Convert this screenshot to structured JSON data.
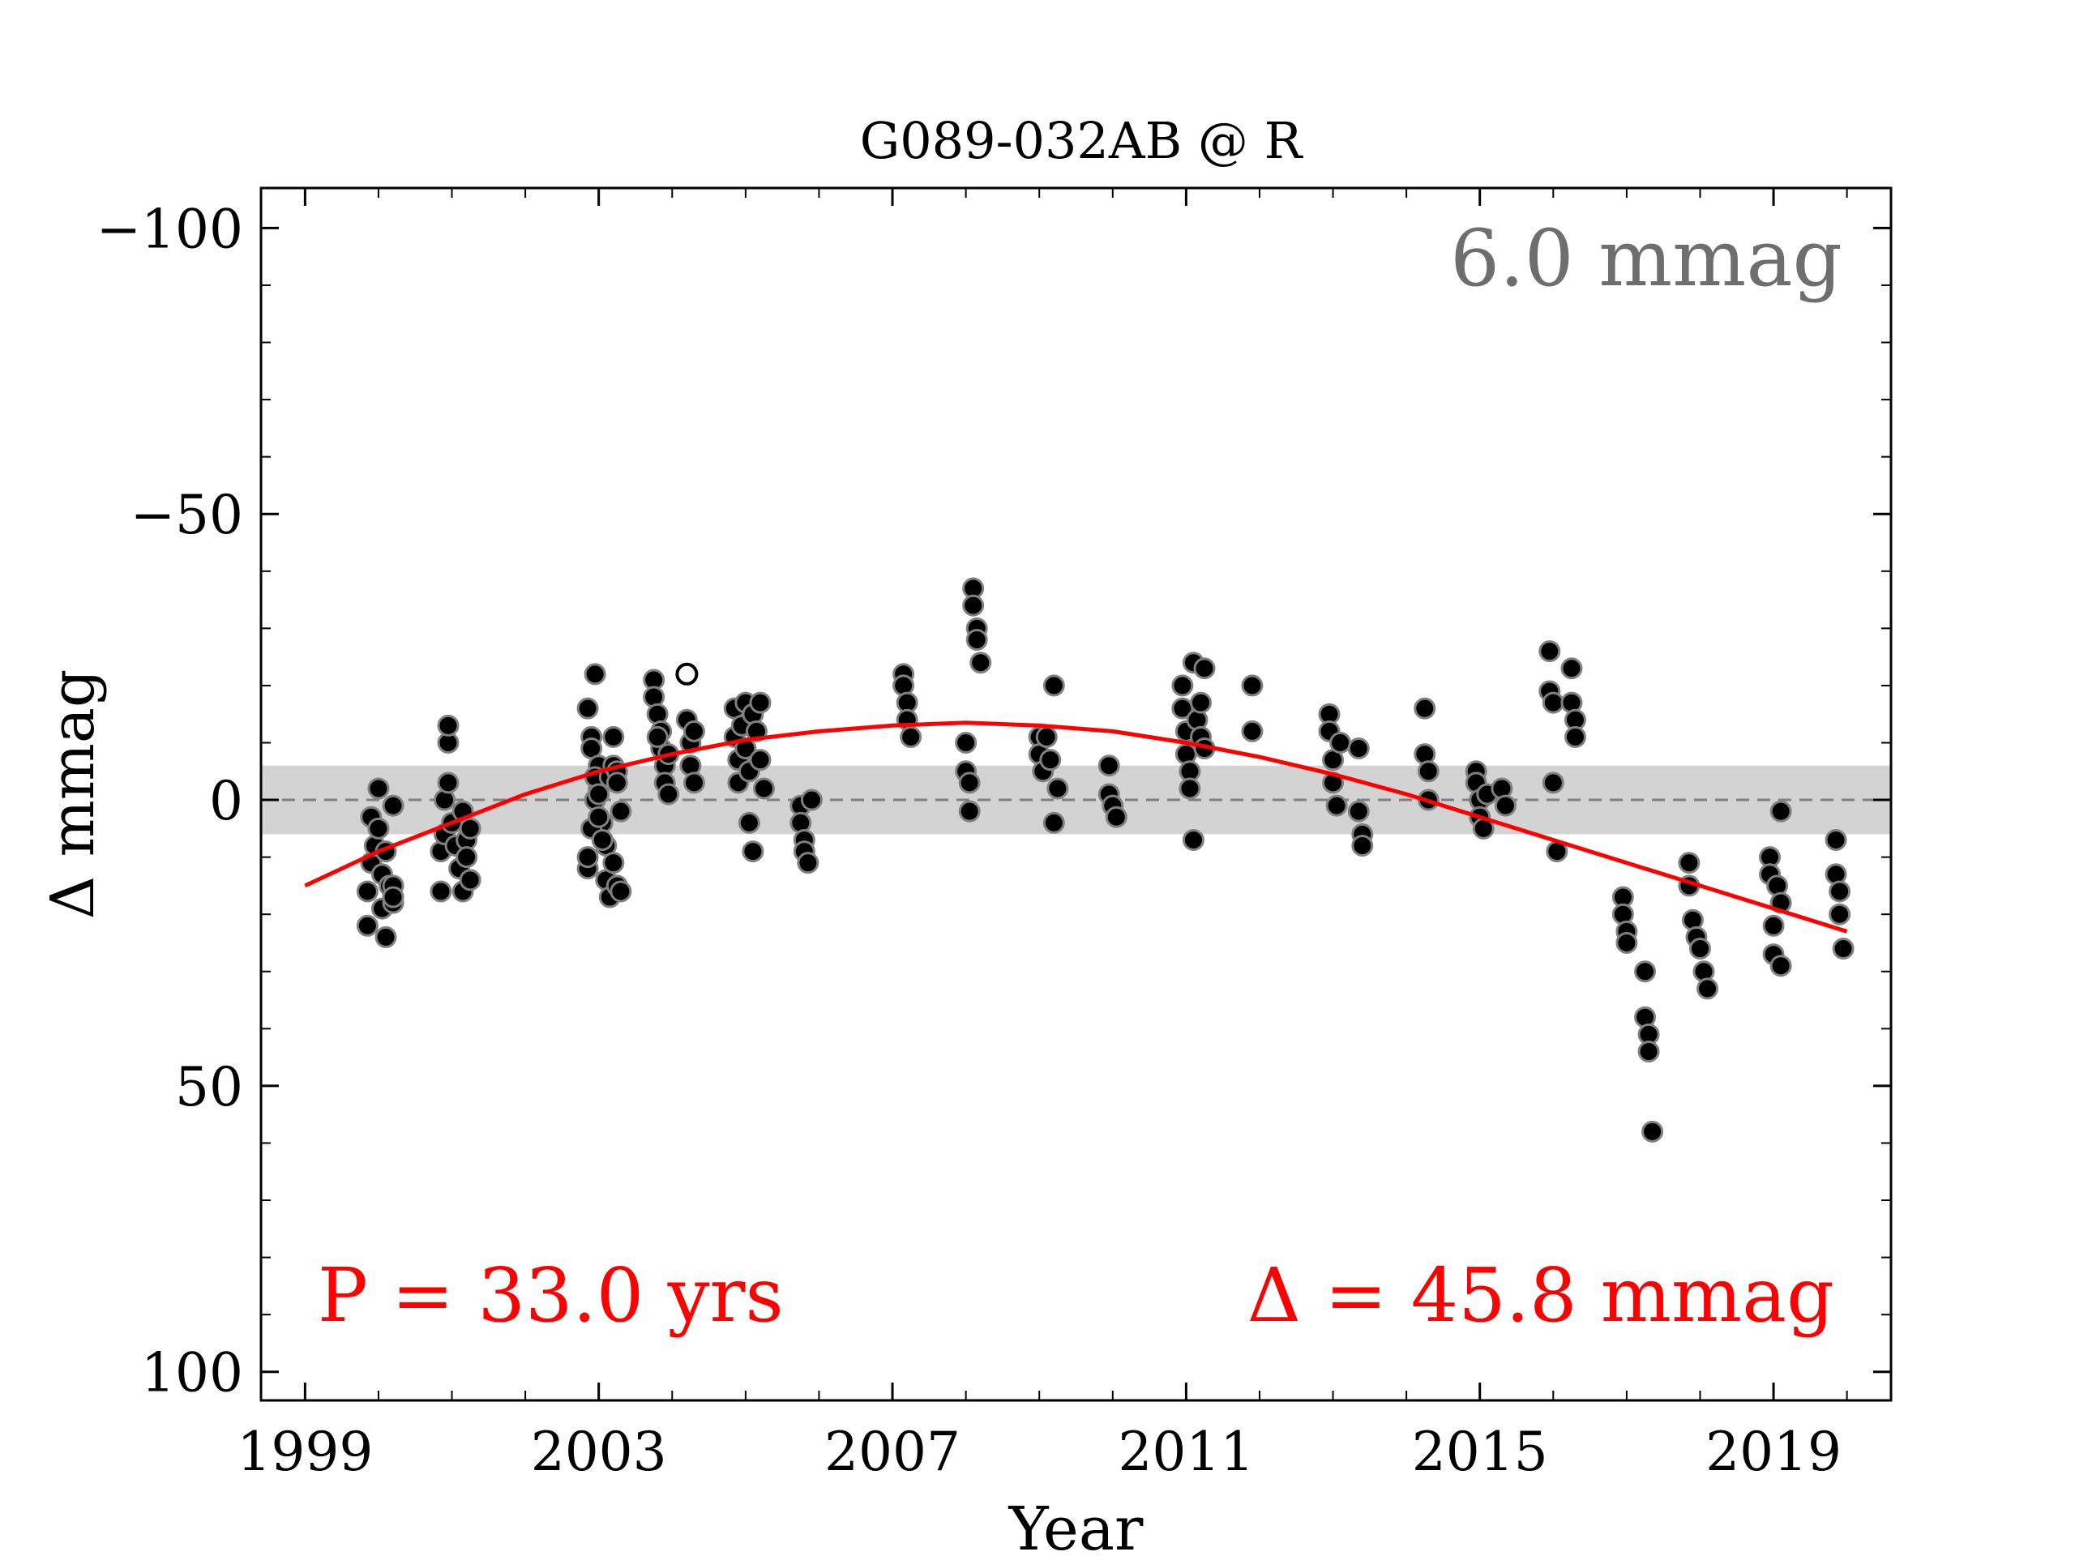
{
  "chart_data": {
    "type": "scatter",
    "title": "G089-032AB @ R",
    "xlabel": "Year",
    "ylabel": "Δ  mmag",
    "xlim": [
      1998.4,
      2020.6
    ],
    "ylim": [
      105,
      -107
    ],
    "y_inverted": true,
    "x_ticks": [
      1999,
      2003,
      2007,
      2011,
      2015,
      2019
    ],
    "x_tick_labels": [
      "1999",
      "2003",
      "2007",
      "2011",
      "2015",
      "2019"
    ],
    "y_ticks": [
      -100,
      -50,
      0,
      50,
      100
    ],
    "y_tick_labels": [
      "−100",
      "−50",
      "0",
      "50",
      "100"
    ],
    "grid": false,
    "annotations": {
      "scatter_label": "6.0 mmag",
      "period_label": "P = 33.0 yrs",
      "amplitude_label": "Δ = 45.8 mmag"
    },
    "scatter_band": [
      -6.0,
      6.0
    ],
    "zero_line": 0,
    "colors": {
      "points": "#000000",
      "point_edge": "#808080",
      "fit": "#ff0000",
      "band": "#d3d3d3",
      "zero_line": "#808080",
      "scatter_text": "#6e6e6e",
      "fit_text": "#ff0000"
    },
    "fit_curve": {
      "name": "sinusoid fit",
      "period_yr": 33.0,
      "amplitude_peak_to_peak": 45.8,
      "x": [
        1999.0,
        2000.0,
        2001.0,
        2002.0,
        2003.0,
        2004.0,
        2005.0,
        2006.0,
        2007.0,
        2008.0,
        2009.0,
        2010.0,
        2011.0,
        2012.0,
        2013.0,
        2014.0,
        2015.0,
        2016.0,
        2017.0,
        2018.0,
        2019.0,
        2020.0
      ],
      "y": [
        15,
        9,
        4,
        -1,
        -5,
        -8,
        -10.5,
        -12,
        -13,
        -13.5,
        -13,
        -12,
        -10,
        -7.5,
        -4.5,
        -1,
        3,
        7,
        11,
        15,
        19,
        23
      ]
    },
    "series": [
      {
        "name": "observations",
        "points": [
          [
            1999.85,
            22
          ],
          [
            1999.85,
            16
          ],
          [
            1999.9,
            11
          ],
          [
            1999.9,
            3
          ],
          [
            1999.95,
            8
          ],
          [
            2000.0,
            -2
          ],
          [
            2000.0,
            5
          ],
          [
            2000.05,
            13
          ],
          [
            2000.05,
            19
          ],
          [
            2000.1,
            24
          ],
          [
            2000.1,
            9
          ],
          [
            2000.15,
            15
          ],
          [
            2000.2,
            18
          ],
          [
            2000.2,
            1
          ],
          [
            2000.2,
            15
          ],
          [
            2000.2,
            17
          ],
          [
            2000.85,
            16
          ],
          [
            2000.85,
            9
          ],
          [
            2000.9,
            0
          ],
          [
            2000.9,
            6
          ],
          [
            2000.95,
            -3
          ],
          [
            2000.95,
            -10
          ],
          [
            2000.95,
            -13
          ],
          [
            2001.0,
            4
          ],
          [
            2001.05,
            8
          ],
          [
            2001.1,
            12
          ],
          [
            2001.15,
            16
          ],
          [
            2001.15,
            2
          ],
          [
            2001.2,
            7
          ],
          [
            2001.2,
            10
          ],
          [
            2001.25,
            14
          ],
          [
            2001.25,
            5
          ],
          [
            2002.85,
            -16
          ],
          [
            2002.9,
            -11
          ],
          [
            2002.9,
            -9
          ],
          [
            2002.95,
            -22
          ],
          [
            2003.0,
            -6
          ],
          [
            2003.0,
            -2
          ],
          [
            2003.05,
            4
          ],
          [
            2003.1,
            8
          ],
          [
            2003.1,
            14
          ],
          [
            2003.15,
            17
          ],
          [
            2003.2,
            11
          ],
          [
            2003.25,
            15
          ],
          [
            2003.3,
            16
          ],
          [
            2002.85,
            12
          ],
          [
            2002.85,
            10
          ],
          [
            2002.9,
            5
          ],
          [
            2002.95,
            0
          ],
          [
            2002.95,
            -4
          ],
          [
            2003.0,
            3
          ],
          [
            2003.0,
            -1
          ],
          [
            2003.05,
            7
          ],
          [
            2003.15,
            -4
          ],
          [
            2003.2,
            -6
          ],
          [
            2003.2,
            -11
          ],
          [
            2003.25,
            -5
          ],
          [
            2003.25,
            -3
          ],
          [
            2003.3,
            2
          ],
          [
            2003.75,
            -21
          ],
          [
            2003.75,
            -18
          ],
          [
            2003.8,
            -15
          ],
          [
            2003.85,
            -12
          ],
          [
            2003.85,
            -9
          ],
          [
            2003.9,
            -6
          ],
          [
            2003.9,
            -3
          ],
          [
            2003.95,
            -1
          ],
          [
            2003.95,
            -8
          ],
          [
            2003.8,
            -11
          ],
          [
            2004.2,
            -14
          ],
          [
            2004.25,
            -10
          ],
          [
            2004.25,
            -6
          ],
          [
            2004.3,
            -3
          ],
          [
            2004.3,
            -12
          ],
          [
            2004.85,
            -16
          ],
          [
            2004.85,
            -11
          ],
          [
            2004.9,
            -7
          ],
          [
            2004.9,
            -3
          ],
          [
            2004.95,
            -13
          ],
          [
            2005.0,
            -17
          ],
          [
            2005.0,
            -9
          ],
          [
            2005.05,
            -5
          ],
          [
            2005.05,
            4
          ],
          [
            2005.1,
            9
          ],
          [
            2005.1,
            -15
          ],
          [
            2005.15,
            -12
          ],
          [
            2005.2,
            -7
          ],
          [
            2005.2,
            -17
          ],
          [
            2005.25,
            -2
          ],
          [
            2005.75,
            1
          ],
          [
            2005.75,
            4
          ],
          [
            2005.8,
            7
          ],
          [
            2005.8,
            9
          ],
          [
            2005.85,
            11
          ],
          [
            2005.9,
            0
          ],
          [
            2007.15,
            -22
          ],
          [
            2007.15,
            -20
          ],
          [
            2007.2,
            -17
          ],
          [
            2007.2,
            -14
          ],
          [
            2007.25,
            -11
          ],
          [
            2008.0,
            -10
          ],
          [
            2008.0,
            -5
          ],
          [
            2008.05,
            -3
          ],
          [
            2008.05,
            2
          ],
          [
            2008.1,
            -37
          ],
          [
            2008.1,
            -34
          ],
          [
            2008.15,
            -30
          ],
          [
            2008.15,
            -28
          ],
          [
            2008.2,
            -24
          ],
          [
            2009.0,
            -11
          ],
          [
            2009.0,
            -8
          ],
          [
            2009.05,
            -5
          ],
          [
            2009.1,
            -11
          ],
          [
            2009.15,
            -7
          ],
          [
            2009.2,
            -20
          ],
          [
            2009.2,
            4
          ],
          [
            2009.25,
            -2
          ],
          [
            2009.95,
            -6
          ],
          [
            2009.95,
            -1
          ],
          [
            2010.0,
            1
          ],
          [
            2010.05,
            3
          ],
          [
            2010.95,
            -20
          ],
          [
            2010.95,
            -16
          ],
          [
            2011.0,
            -12
          ],
          [
            2011.0,
            -8
          ],
          [
            2011.05,
            -5
          ],
          [
            2011.05,
            -2
          ],
          [
            2011.1,
            7
          ],
          [
            2011.1,
            -24
          ],
          [
            2011.15,
            -14
          ],
          [
            2011.2,
            -17
          ],
          [
            2011.2,
            -11
          ],
          [
            2011.25,
            -9
          ],
          [
            2011.25,
            -23
          ],
          [
            2011.9,
            -20
          ],
          [
            2011.9,
            -12
          ],
          [
            2012.95,
            -15
          ],
          [
            2012.95,
            -12
          ],
          [
            2013.0,
            -7
          ],
          [
            2013.0,
            -3
          ],
          [
            2013.05,
            1
          ],
          [
            2013.1,
            -10
          ],
          [
            2013.35,
            -9
          ],
          [
            2013.35,
            2
          ],
          [
            2013.4,
            6
          ],
          [
            2013.4,
            8
          ],
          [
            2014.25,
            -16
          ],
          [
            2014.25,
            -8
          ],
          [
            2014.3,
            -5
          ],
          [
            2014.3,
            0
          ],
          [
            2014.95,
            -5
          ],
          [
            2014.95,
            -3
          ],
          [
            2015.0,
            0
          ],
          [
            2015.0,
            3
          ],
          [
            2015.05,
            5
          ],
          [
            2015.1,
            -1
          ],
          [
            2015.3,
            -2
          ],
          [
            2015.35,
            1
          ],
          [
            2015.95,
            -26
          ],
          [
            2015.95,
            -19
          ],
          [
            2016.0,
            -17
          ],
          [
            2016.0,
            -3
          ],
          [
            2016.05,
            9
          ],
          [
            2016.25,
            -23
          ],
          [
            2016.25,
            -17
          ],
          [
            2016.3,
            -14
          ],
          [
            2016.3,
            -11
          ],
          [
            2016.95,
            17
          ],
          [
            2016.95,
            20
          ],
          [
            2017.0,
            23
          ],
          [
            2017.0,
            25
          ],
          [
            2017.25,
            30
          ],
          [
            2017.25,
            38
          ],
          [
            2017.3,
            41
          ],
          [
            2017.3,
            44
          ],
          [
            2017.35,
            58
          ],
          [
            2017.85,
            11
          ],
          [
            2017.85,
            15
          ],
          [
            2017.9,
            21
          ],
          [
            2017.95,
            24
          ],
          [
            2018.0,
            26
          ],
          [
            2018.05,
            30
          ],
          [
            2018.1,
            33
          ],
          [
            2018.95,
            10
          ],
          [
            2018.95,
            13
          ],
          [
            2019.0,
            22
          ],
          [
            2019.0,
            27
          ],
          [
            2019.05,
            15
          ],
          [
            2019.1,
            18
          ],
          [
            2019.1,
            29
          ],
          [
            2019.1,
            2
          ],
          [
            2019.85,
            7
          ],
          [
            2019.85,
            13
          ],
          [
            2019.9,
            16
          ],
          [
            2019.9,
            20
          ],
          [
            2019.95,
            26
          ]
        ]
      },
      {
        "name": "outlier",
        "open_marker": true,
        "points": [
          [
            2004.2,
            -22
          ]
        ]
      }
    ]
  }
}
